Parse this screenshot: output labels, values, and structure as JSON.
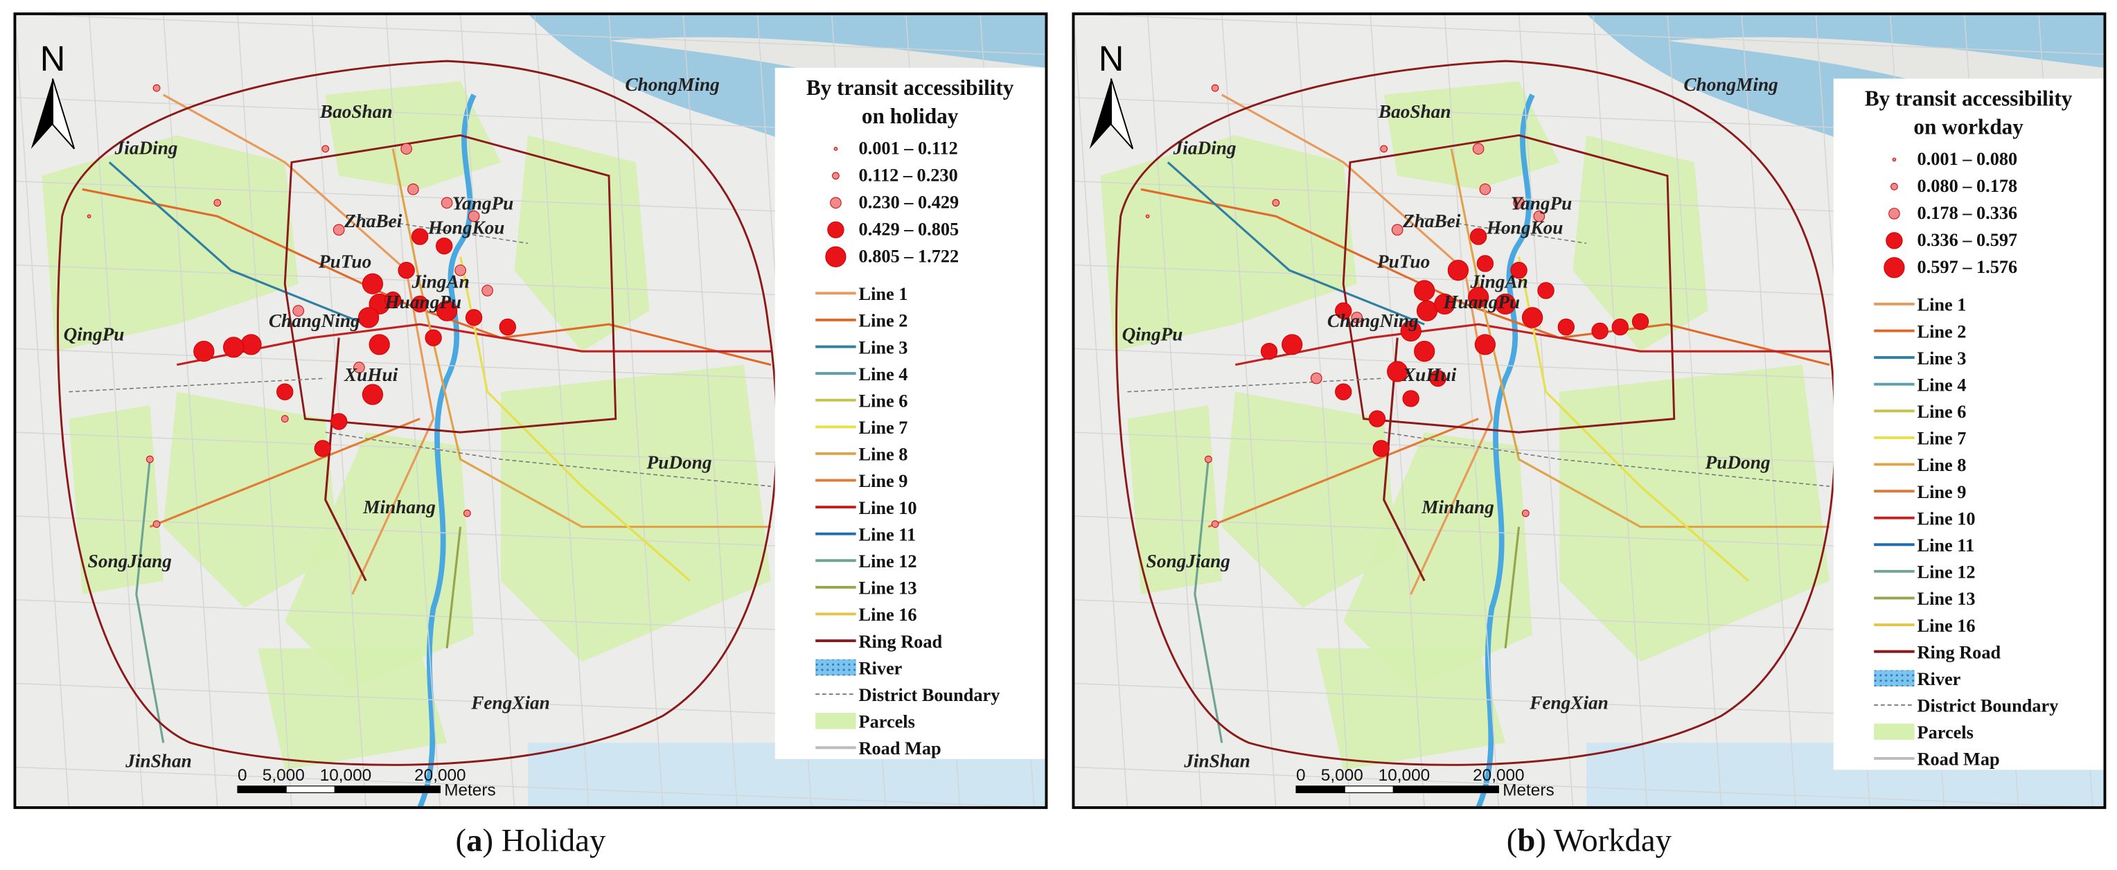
{
  "panels": [
    {
      "legend_title": [
        "By transit accessibility",
        "on holiday"
      ],
      "classes": [
        "0.001 – 0.112",
        "0.112 – 0.230",
        "0.230 – 0.429",
        "0.429 – 0.805",
        "0.805 – 1.722"
      ],
      "caption_prefix": "(",
      "caption_letter": "a",
      "caption_suffix": ") Holiday"
    },
    {
      "legend_title": [
        "By transit accessibility",
        "on workday"
      ],
      "classes": [
        "0.001 – 0.080",
        "0.080 – 0.178",
        "0.178 – 0.336",
        "0.336 – 0.597",
        "0.597 – 1.576"
      ],
      "caption_prefix": "(",
      "caption_letter": "b",
      "caption_suffix": ") Workday"
    }
  ],
  "north": "N",
  "districts": [
    "JiaDing",
    "BaoShan",
    "ChongMing",
    "YangPu",
    "ZhaBei",
    "HongKou",
    "PuTuo",
    "JingAn",
    "HuangPu",
    "ChangNing",
    "QingPu",
    "XuHui",
    "PuDong",
    "Minhang",
    "SongJiang",
    "FengXian",
    "JinShan"
  ],
  "legend_items": [
    {
      "name": "Line 1",
      "kind": "line",
      "color": "#e89a5a"
    },
    {
      "name": "Line 2",
      "kind": "line",
      "color": "#e06a2a"
    },
    {
      "name": "Line 3",
      "kind": "line",
      "color": "#2f7fa0"
    },
    {
      "name": "Line 4",
      "kind": "line",
      "color": "#5aa0b0"
    },
    {
      "name": "Line 6",
      "kind": "line",
      "color": "#c2c44a"
    },
    {
      "name": "Line 7",
      "kind": "line",
      "color": "#e6e04a"
    },
    {
      "name": "Line 8",
      "kind": "line",
      "color": "#e0a448"
    },
    {
      "name": "Line 9",
      "kind": "line",
      "color": "#e07c34"
    },
    {
      "name": "Line 10",
      "kind": "line",
      "color": "#c02222"
    },
    {
      "name": "Line 11",
      "kind": "line",
      "color": "#1f6fb0"
    },
    {
      "name": "Line 12",
      "kind": "line",
      "color": "#6fa392"
    },
    {
      "name": "Line 13",
      "kind": "line",
      "color": "#96a44a"
    },
    {
      "name": "Line 16",
      "kind": "line",
      "color": "#e2c448"
    },
    {
      "name": "Ring Road",
      "kind": "line",
      "color": "#8b1a1a"
    },
    {
      "name": "River",
      "kind": "box",
      "color": "#4aa8e0"
    },
    {
      "name": "District Boundary",
      "kind": "dash",
      "color": "#777777"
    },
    {
      "name": "Parcels",
      "kind": "box",
      "color": "#d6f0b0"
    },
    {
      "name": "Road Map",
      "kind": "line",
      "color": "#bbbbbb"
    }
  ],
  "scale_bar": {
    "ticks": [
      "0",
      "5,000",
      "10,000",
      "20,000"
    ],
    "unit": "Meters"
  }
}
